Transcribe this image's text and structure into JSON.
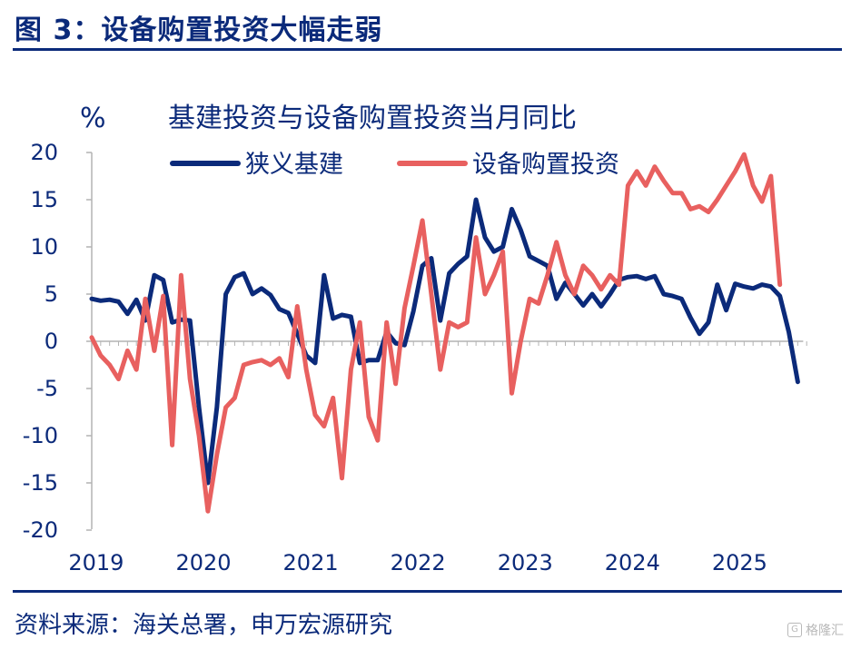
{
  "figure_title": "图 3：设备购置投资大幅走弱",
  "source_note": "资料来源：海关总署，申万宏源研究",
  "watermark": "格隆汇",
  "colors": {
    "navy": "#0b2a7a",
    "red": "#e8605f",
    "axis": "#b3b3b3"
  },
  "chart_data": {
    "type": "line",
    "title": "基建投资与设备购置投资当月同比",
    "ylabel": "%",
    "xlabel": "",
    "ylim": [
      -20,
      20
    ],
    "yticks": [
      "20",
      "15",
      "10",
      "5",
      "0",
      "-5",
      "-10",
      "-15",
      "-20"
    ],
    "xticks": [
      "2019",
      "2020",
      "2021",
      "2022",
      "2023",
      "2024",
      "2025"
    ],
    "x_start": "2019-01",
    "x_frequency": "monthly",
    "grid": false,
    "legend_position": "top",
    "series": [
      {
        "name": "狭义基建",
        "color": "#0b2a7a",
        "values": [
          4.5,
          4.3,
          4.4,
          4.2,
          2.9,
          4.4,
          2.2,
          7.0,
          6.5,
          2.0,
          2.3,
          2.2,
          -7.0,
          -15.0,
          -7.0,
          5.0,
          6.8,
          7.2,
          5.0,
          5.6,
          4.9,
          3.4,
          3.0,
          0.8,
          -1.5,
          -2.3,
          7.0,
          2.4,
          2.8,
          2.6,
          -2.3,
          -2.0,
          -2.0,
          1.0,
          -0.2,
          -0.4,
          3.2,
          8.0,
          8.8,
          2.2,
          7.2,
          8.2,
          9.0,
          15.0,
          11.0,
          9.5,
          10.0,
          14.0,
          11.8,
          9.0,
          8.5,
          8.0,
          4.5,
          6.2,
          5.0,
          3.8,
          5.0,
          3.7,
          5.0,
          6.5,
          6.8,
          6.9,
          6.6,
          6.9,
          5.0,
          4.8,
          4.5,
          2.5,
          0.8,
          2.0,
          6.0,
          3.3,
          6.1,
          5.8,
          5.6,
          6.0,
          5.8,
          4.8,
          1.0,
          -4.3
        ]
      },
      {
        "name": "设备购置投资",
        "color": "#e8605f",
        "values": [
          0.4,
          -1.5,
          -2.5,
          -4.0,
          -1.0,
          -3.0,
          4.5,
          -1.0,
          4.8,
          -11.0,
          7.0,
          -4.0,
          -10.0,
          -18.0,
          -12.0,
          -7.0,
          -6.0,
          -2.5,
          -2.2,
          -2.0,
          -2.5,
          -1.8,
          -3.8,
          3.7,
          -3.0,
          -7.8,
          -9.0,
          -6.0,
          -14.5,
          -3.0,
          2.0,
          -8.0,
          -10.5,
          2.0,
          -4.5,
          3.5,
          8.0,
          12.8,
          5.0,
          -3.0,
          2.0,
          1.5,
          2.0,
          11.0,
          5.0,
          7.0,
          9.5,
          -5.5,
          0.0,
          4.5,
          4.0,
          7.0,
          10.5,
          7.0,
          5.0,
          8.0,
          7.0,
          5.5,
          7.0,
          6.0,
          16.5,
          18.0,
          16.5,
          18.5,
          17.0,
          15.7,
          15.7,
          14.0,
          14.3,
          13.7,
          15.0,
          16.5,
          18.0,
          19.8,
          16.5,
          14.8,
          17.5,
          6.0
        ]
      }
    ]
  }
}
